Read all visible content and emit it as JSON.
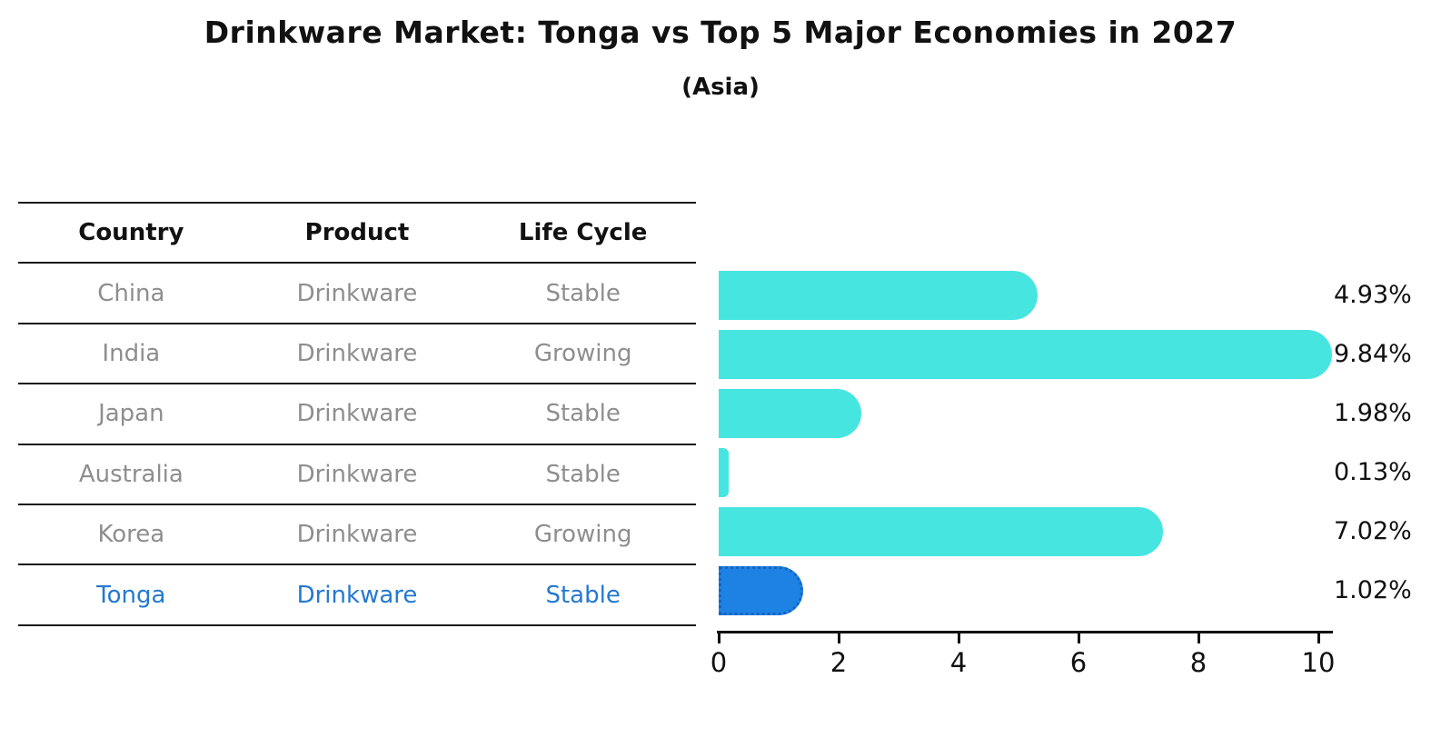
{
  "title": "Drinkware Market: Tonga vs Top 5 Major Economies in 2027",
  "subtitle": "(Asia)",
  "table": {
    "headers": {
      "country": "Country",
      "product": "Product",
      "life_cycle": "Life Cycle"
    }
  },
  "chart_data": {
    "type": "bar",
    "orientation": "horizontal",
    "title": "Drinkware Market: Tonga vs Top 5 Major Economies in 2027",
    "subtitle": "(Asia)",
    "xlabel": "",
    "ylabel": "",
    "xlim": [
      0,
      10.3
    ],
    "x_ticks": [
      "0",
      "2",
      "4",
      "6",
      "8",
      "10"
    ],
    "grid": false,
    "legend": false,
    "rows": [
      {
        "country": "China",
        "product": "Drinkware",
        "life_cycle": "Stable",
        "value": 4.93,
        "label": "4.93%",
        "highlight": false
      },
      {
        "country": "India",
        "product": "Drinkware",
        "life_cycle": "Growing",
        "value": 9.84,
        "label": "9.84%",
        "highlight": false
      },
      {
        "country": "Japan",
        "product": "Drinkware",
        "life_cycle": "Stable",
        "value": 1.98,
        "label": "1.98%",
        "highlight": false
      },
      {
        "country": "Australia",
        "product": "Drinkware",
        "life_cycle": "Stable",
        "value": 0.13,
        "label": "0.13%",
        "highlight": false
      },
      {
        "country": "Korea",
        "product": "Drinkware",
        "life_cycle": "Growing",
        "value": 7.02,
        "label": "7.02%",
        "highlight": false
      },
      {
        "country": "Tonga",
        "product": "Drinkware",
        "life_cycle": "Stable",
        "value": 1.02,
        "label": "1.02%",
        "highlight": true
      }
    ],
    "colors": {
      "bar": "#46E5E0",
      "highlight_bar": "#1E82E5",
      "highlight_border": "#1565C0",
      "highlight_text": "#2479D0",
      "row_text": "#8E8E8E",
      "text": "#111111"
    }
  }
}
